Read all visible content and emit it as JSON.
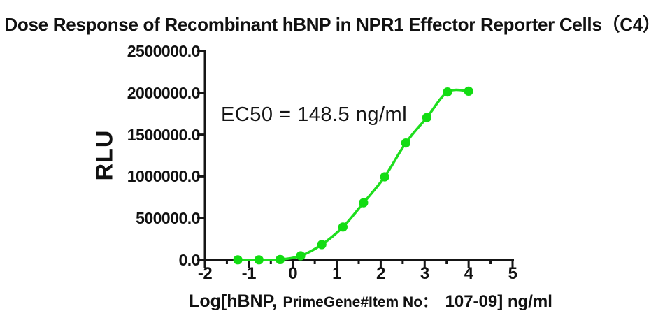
{
  "page": {
    "title": "Dose Response of Recombinant hBNP in NPR1 Effector Reporter Cells（C4）"
  },
  "annotation": {
    "ec50_label": "EC50 = 148.5 ng/ml"
  },
  "chart_data": {
    "type": "scatter",
    "title": "Dose Response of Recombinant hBNP in NPR1 Effector Reporter Cells（C4）",
    "subtitle": "",
    "annotation": "EC50 = 148.5 ng/ml",
    "ec50_ng_ml": 148.5,
    "xlabel_full": "Log[hBNP, PrimeGene#Item No： 107-09] ng/ml",
    "xlabel": {
      "part1": "Log[hBNP,",
      "part2": "PrimeGene#Item No：",
      "part3": "107-09] ng/ml"
    },
    "ylabel": "RLU",
    "xlim": [
      -2,
      5
    ],
    "ylim": [
      0,
      2500000
    ],
    "grid": false,
    "legend_position": "none",
    "x_ticks": [
      -2,
      -1,
      0,
      1,
      2,
      3,
      4,
      5
    ],
    "x_minor_ticks": [
      -1.5,
      -0.5,
      0.5,
      1.5,
      2.5,
      3.5,
      4.5
    ],
    "y_ticks": [
      0,
      500000,
      1000000,
      1500000,
      2000000,
      2500000
    ],
    "y_tick_labels": [
      "0.0",
      "500000.0",
      "1000000.0",
      "1500000.0",
      "2000000.0",
      "2500000.0"
    ],
    "colors": {
      "series_green": "#12DC12",
      "curve_green": "#1EDE1E",
      "axis_black": "#151515"
    },
    "series": [
      {
        "name": "Recombinant hBNP",
        "x": [
          -1.25,
          -0.77,
          -0.29,
          0.18,
          0.66,
          1.14,
          1.61,
          2.09,
          2.57,
          3.05,
          3.52,
          4.0
        ],
        "y": [
          2000,
          2000,
          5000,
          50000,
          185000,
          395000,
          685000,
          995000,
          1400000,
          1705000,
          2010000,
          2020000
        ]
      }
    ]
  }
}
